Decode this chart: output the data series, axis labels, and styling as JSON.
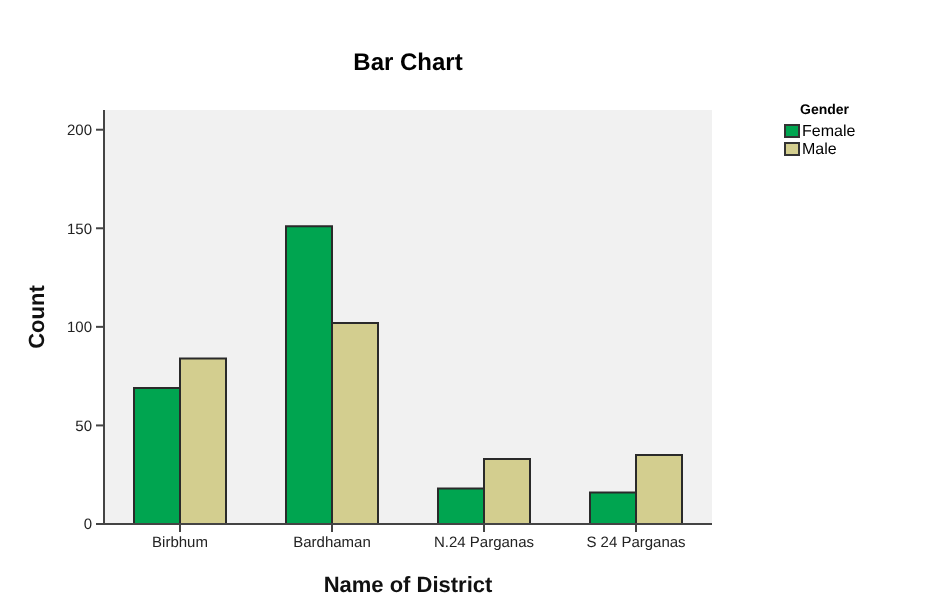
{
  "chart_data": {
    "type": "bar",
    "title": "Bar Chart",
    "xlabel": "Name of District",
    "ylabel": "Count",
    "legend_title": "Gender",
    "categories": [
      "Birbhum",
      "Bardhaman",
      "N.24 Parganas",
      "S 24 Parganas"
    ],
    "series": [
      {
        "name": "Female",
        "color": "#00a550",
        "values": [
          69,
          151,
          18,
          16
        ]
      },
      {
        "name": "Male",
        "color": "#d3ce8f",
        "values": [
          84,
          102,
          33,
          35
        ]
      }
    ],
    "ylim": [
      0,
      210
    ],
    "yticks": [
      0,
      50,
      100,
      150,
      200
    ],
    "grid": false,
    "legend": "top right"
  }
}
